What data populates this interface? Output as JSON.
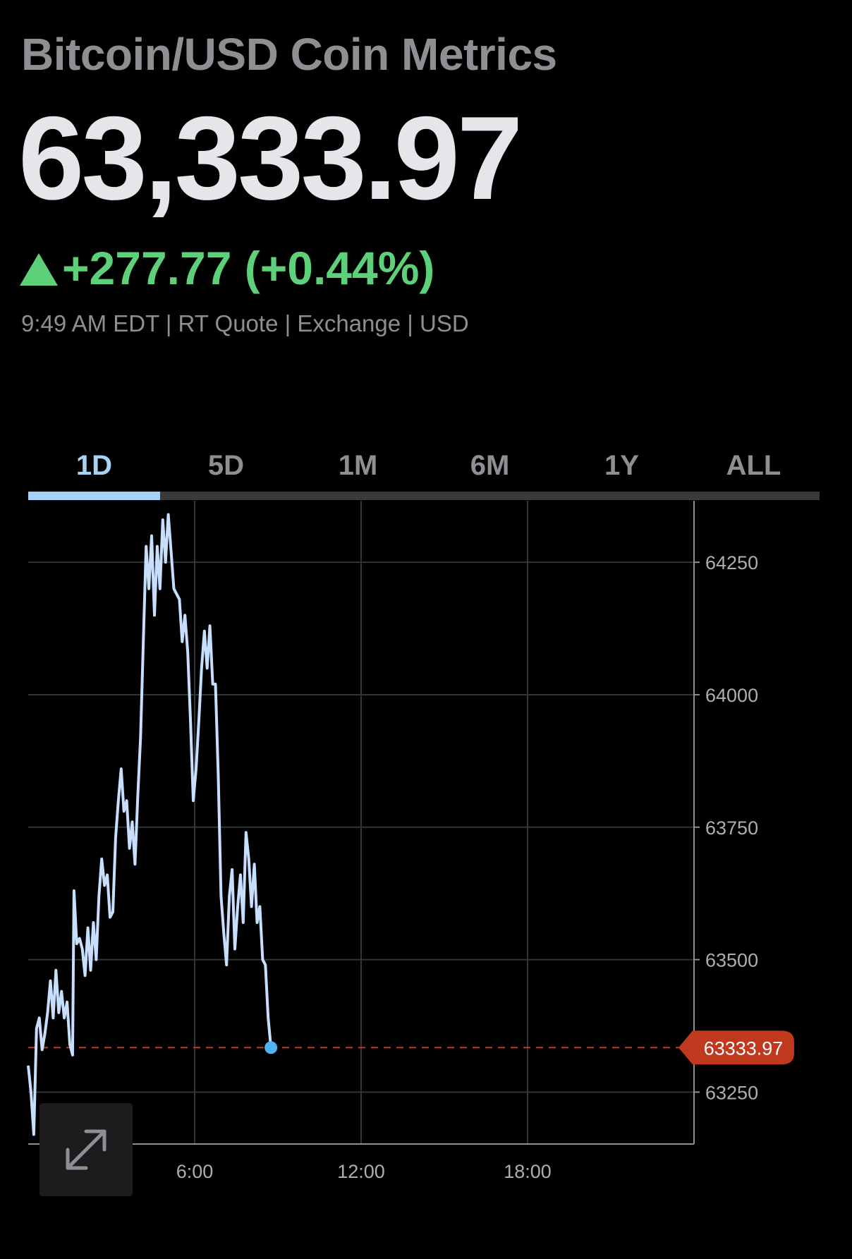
{
  "header": {
    "title": "Bitcoin/USD Coin Metrics",
    "price": "63,333.97",
    "change": "+277.77 (+0.44%)",
    "meta": "9:49 AM EDT | RT Quote | Exchange | USD",
    "change_color": "#5fd07a"
  },
  "tabs": [
    {
      "label": "1D",
      "active": true
    },
    {
      "label": "5D"
    },
    {
      "label": "1M"
    },
    {
      "label": "6M"
    },
    {
      "label": "1Y"
    },
    {
      "label": "ALL"
    }
  ],
  "controls": {
    "expand_icon": "expand-arrows-icon"
  },
  "chart_data": {
    "type": "line",
    "title": "",
    "xlabel": "",
    "ylabel": "",
    "x_tick_labels": [
      "6:00",
      "12:00",
      "18:00"
    ],
    "x_ticks": [
      6,
      12,
      18
    ],
    "y_ticks": [
      63250,
      63500,
      63750,
      64000,
      64250
    ],
    "x_range": [
      0,
      24
    ],
    "y_range": [
      63152,
      64366
    ],
    "line_color": "#c7dffc",
    "reference_line": {
      "value": 63333.97,
      "label": "63333.97",
      "color": "#c0391f"
    },
    "end_marker_color": "#4db3f5",
    "grid": true,
    "series": [
      {
        "values": [
          [
            0.0,
            63300
          ],
          [
            0.1,
            63250
          ],
          [
            0.2,
            63170
          ],
          [
            0.3,
            63370
          ],
          [
            0.4,
            63390
          ],
          [
            0.5,
            63330
          ],
          [
            0.6,
            63360
          ],
          [
            0.7,
            63400
          ],
          [
            0.8,
            63460
          ],
          [
            0.9,
            63390
          ],
          [
            1.0,
            63480
          ],
          [
            1.1,
            63400
          ],
          [
            1.2,
            63440
          ],
          [
            1.3,
            63390
          ],
          [
            1.4,
            63420
          ],
          [
            1.5,
            63340
          ],
          [
            1.6,
            63320
          ],
          [
            1.65,
            63630
          ],
          [
            1.75,
            63530
          ],
          [
            1.85,
            63540
          ],
          [
            1.95,
            63520
          ],
          [
            2.05,
            63470
          ],
          [
            2.15,
            63560
          ],
          [
            2.25,
            63480
          ],
          [
            2.35,
            63570
          ],
          [
            2.45,
            63500
          ],
          [
            2.55,
            63620
          ],
          [
            2.65,
            63690
          ],
          [
            2.75,
            63640
          ],
          [
            2.85,
            63660
          ],
          [
            2.95,
            63580
          ],
          [
            3.05,
            63590
          ],
          [
            3.15,
            63730
          ],
          [
            3.25,
            63800
          ],
          [
            3.35,
            63860
          ],
          [
            3.45,
            63780
          ],
          [
            3.55,
            63800
          ],
          [
            3.65,
            63710
          ],
          [
            3.75,
            63760
          ],
          [
            3.85,
            63680
          ],
          [
            3.95,
            63810
          ],
          [
            4.05,
            63920
          ],
          [
            4.15,
            64100
          ],
          [
            4.25,
            64280
          ],
          [
            4.35,
            64200
          ],
          [
            4.45,
            64300
          ],
          [
            4.55,
            64150
          ],
          [
            4.65,
            64280
          ],
          [
            4.75,
            64200
          ],
          [
            4.85,
            64330
          ],
          [
            4.95,
            64250
          ],
          [
            5.05,
            64340
          ],
          [
            5.15,
            64270
          ],
          [
            5.25,
            64200
          ],
          [
            5.35,
            64190
          ],
          [
            5.45,
            64180
          ],
          [
            5.55,
            64100
          ],
          [
            5.65,
            64150
          ],
          [
            5.75,
            64080
          ],
          [
            5.85,
            63950
          ],
          [
            5.95,
            63800
          ],
          [
            6.05,
            63860
          ],
          [
            6.15,
            63950
          ],
          [
            6.25,
            64050
          ],
          [
            6.35,
            64120
          ],
          [
            6.45,
            64050
          ],
          [
            6.55,
            64130
          ],
          [
            6.65,
            64020
          ],
          [
            6.75,
            64020
          ],
          [
            6.85,
            63850
          ],
          [
            6.95,
            63620
          ],
          [
            7.05,
            63550
          ],
          [
            7.15,
            63490
          ],
          [
            7.25,
            63620
          ],
          [
            7.35,
            63670
          ],
          [
            7.45,
            63520
          ],
          [
            7.55,
            63600
          ],
          [
            7.65,
            63660
          ],
          [
            7.75,
            63570
          ],
          [
            7.85,
            63740
          ],
          [
            7.95,
            63690
          ],
          [
            8.05,
            63600
          ],
          [
            8.15,
            63680
          ],
          [
            8.25,
            63570
          ],
          [
            8.35,
            63600
          ],
          [
            8.45,
            63500
          ],
          [
            8.55,
            63490
          ],
          [
            8.65,
            63390
          ],
          [
            8.75,
            63333.97
          ]
        ]
      }
    ]
  }
}
